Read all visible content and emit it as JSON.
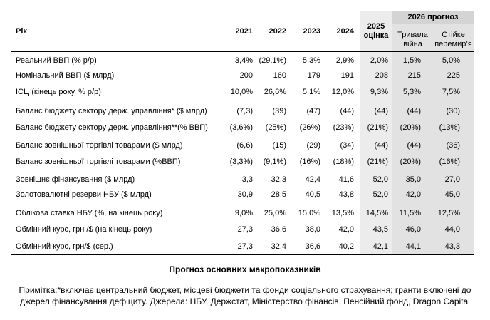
{
  "table": {
    "header": {
      "label": "Рік",
      "years": [
        "2021",
        "2022",
        "2023",
        "2024"
      ],
      "estimate": "2025 оцінка",
      "forecast_group": "2026 прогноз",
      "scenarios": [
        "Тривала війна",
        "Стійке перемир’я"
      ]
    },
    "rows": [
      [
        "Реальний ВВП (% р/р)",
        "3,4%",
        "(29,1%)",
        "5,3%",
        "2,9%",
        "2,0%",
        "1,5%",
        "5,0%"
      ],
      [
        "Номінальний ВВП ($ млрд)",
        "200",
        "160",
        "179",
        "191",
        "208",
        "215",
        "225"
      ],
      [
        "ІСЦ (кінець року, % р/р)",
        "10,0%",
        "26,6%",
        "5,1%",
        "12,0%",
        "9,3%",
        "5,3%",
        "7,5%"
      ],
      [
        "Баланс бюджету сектору держ. управління* ($ млрд)",
        "(7,3)",
        "(39)",
        "(47)",
        "(44)",
        "(44)",
        "(44)",
        "(30)"
      ],
      [
        "Баланс бюджету сектору держ. управління**(% ВВП)",
        "(3,6%)",
        "(25%)",
        "(26%)",
        "(23%)",
        "(21%)",
        "(20%)",
        "(13%)"
      ],
      [
        "Баланс зовнішньої торгівлі товарами ($  млрд)",
        "(6,6)",
        "(15)",
        "(29)",
        "(34)",
        "(44)",
        "(44)",
        "(36)"
      ],
      [
        "Баланс зовнішньої торгівлі товарами (%ВВП)",
        "(3,3%)",
        "(9,1%)",
        "(16%)",
        "(18%)",
        "(21%)",
        "(20%)",
        "(16%)"
      ],
      [
        "Зовнішнє фінансування ($ млрд)",
        "3,3",
        "32,3",
        "42,4",
        "41,6",
        "52,0",
        "35,0",
        "27,0"
      ],
      [
        "Золотовалютні резерви НБУ ($ млрд)",
        "30,9",
        "28,5",
        "40,5",
        "43,8",
        "52,0",
        "42,0",
        "45,0"
      ],
      [
        "Облікова ставка НБУ (%, на кінець року)",
        "9,0%",
        "25,0%",
        "15,0%",
        "13,5%",
        "14,5%",
        "11,5%",
        "12,5%"
      ],
      [
        "Обмінний курс, грн /$ (на кінець року)",
        "27,3",
        "36,6",
        "38,0",
        "42,0",
        "43,5",
        "46,0",
        "44,0"
      ],
      [
        "Обмінний курс, грн/$  (сер.)",
        "27,3",
        "32,4",
        "36,6",
        "40,2",
        "42,1",
        "44,1",
        "43,3"
      ]
    ]
  },
  "caption": "Прогноз основних макропоказників",
  "note": "Примітка:*включає центральний бюджет, місцеві бюджети та фонди соціального страхування; гранти включені до джерел фінансування дефіциту. Джерела: НБУ, Держстат, Міністерство фінансів, Пенсійний фонд, Dragon Capital"
}
